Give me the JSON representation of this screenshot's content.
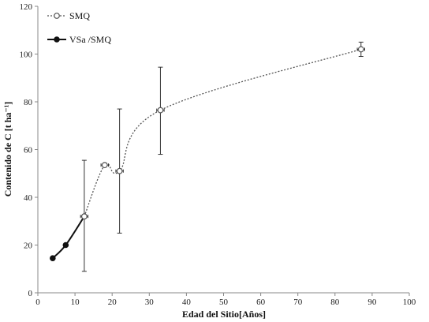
{
  "chart_data": {
    "type": "line",
    "title": "",
    "xlabel": "Edad del Sitio[Años]",
    "ylabel": "Contenido de C [t ha⁻¹]",
    "xlim": [
      0,
      100
    ],
    "ylim": [
      0,
      120
    ],
    "xticks": [
      0,
      10,
      20,
      30,
      40,
      50,
      60,
      70,
      80,
      90,
      100
    ],
    "yticks": [
      0,
      20,
      40,
      60,
      80,
      100,
      120
    ],
    "grid": false,
    "legend": "top-left",
    "series": [
      {
        "name": "SMQ",
        "style": "dotted-smooth",
        "marker": "open-circle",
        "color": "#555555",
        "points": [
          {
            "x": 12.5,
            "y": 32,
            "yerr_low": 9,
            "yerr_high": 55.5,
            "xerr": 1
          },
          {
            "x": 18,
            "y": 53.5,
            "xerr": 1
          },
          {
            "x": 22,
            "y": 51,
            "yerr_low": 25,
            "yerr_high": 77,
            "xerr": 1
          },
          {
            "x": 33,
            "y": 76.5,
            "yerr_low": 58,
            "yerr_high": 94.5,
            "xerr": 1
          },
          {
            "x": 87,
            "y": 102,
            "yerr_low": 99,
            "yerr_high": 105,
            "xerr": 1
          }
        ]
      },
      {
        "name": "VSa /SMQ",
        "style": "solid",
        "marker": "filled-circle",
        "color": "#111111",
        "points": [
          {
            "x": 4,
            "y": 14.5
          },
          {
            "x": 7.5,
            "y": 20
          },
          {
            "x": 12.5,
            "y": 32
          }
        ]
      }
    ]
  }
}
